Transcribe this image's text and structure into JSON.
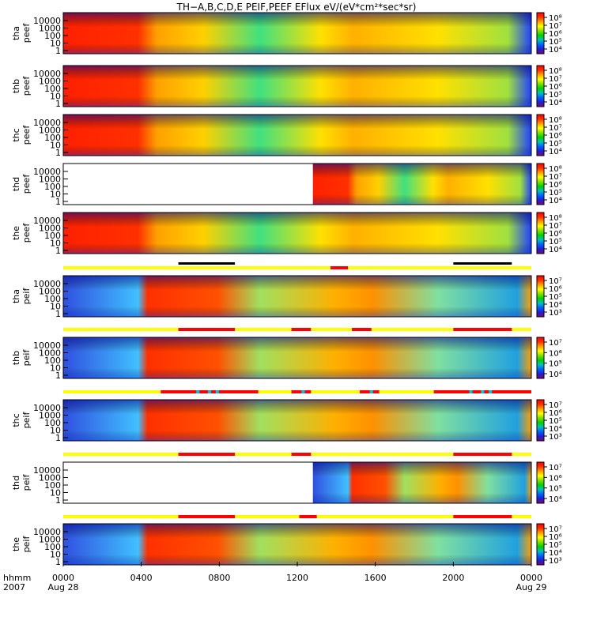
{
  "chart_data": {
    "type": "heatmap",
    "title": "TH−A,B,C,D,E PEIF,PEEF EFlux eV/(eV*cm²*sec*sr)",
    "x_axis": {
      "label_line1": "hhmm",
      "label_line2": "2007",
      "range_hours": [
        0,
        24
      ],
      "ticks": [
        "0000",
        "0400",
        "0800",
        "1200",
        "1600",
        "2000",
        "0000"
      ],
      "date_labels": [
        "Aug 28",
        "Aug 29"
      ]
    },
    "panels": [
      {
        "probe": "tha",
        "product": "peef",
        "yticks": [
          "10000",
          "1000",
          "100",
          "10",
          "1"
        ],
        "cb_ticks": [
          "10⁸",
          "10⁷",
          "10⁶",
          "10⁵",
          "10⁴"
        ],
        "data_start_hour": 0
      },
      {
        "probe": "thb",
        "product": "peef",
        "yticks": [
          "10000",
          "1000",
          "100",
          "10",
          "1"
        ],
        "cb_ticks": [
          "10⁸",
          "10⁷",
          "10⁶",
          "10⁵",
          "10⁴"
        ],
        "data_start_hour": 0
      },
      {
        "probe": "thc",
        "product": "peef",
        "yticks": [
          "10000",
          "1000",
          "100",
          "10",
          "1"
        ],
        "cb_ticks": [
          "10⁸",
          "10⁷",
          "10⁶",
          "10⁵",
          "10⁴"
        ],
        "data_start_hour": 0
      },
      {
        "probe": "thd",
        "product": "peef",
        "yticks": [
          "10000",
          "1000",
          "100",
          "10",
          "1"
        ],
        "cb_ticks": [
          "10⁸",
          "10⁷",
          "10⁶",
          "10⁵",
          "10⁴"
        ],
        "data_start_hour": 12.8
      },
      {
        "probe": "the",
        "product": "peef",
        "yticks": [
          "10000",
          "1000",
          "100",
          "10",
          "1"
        ],
        "cb_ticks": [
          "10⁸",
          "10⁷",
          "10⁶",
          "10⁵",
          "10⁴"
        ],
        "data_start_hour": 0
      },
      {
        "probe": "tha",
        "product": "peif",
        "yticks": [
          "10000",
          "1000",
          "100",
          "10",
          "1"
        ],
        "cb_ticks": [
          "10⁷",
          "10⁶",
          "10⁵",
          "10⁴",
          "10³"
        ],
        "data_start_hour": 0
      },
      {
        "probe": "thb",
        "product": "peif",
        "yticks": [
          "10000",
          "1000",
          "100",
          "10",
          "1"
        ],
        "cb_ticks": [
          "10⁷",
          "10⁶",
          "10⁵",
          "10⁴"
        ],
        "data_start_hour": 0
      },
      {
        "probe": "thc",
        "product": "peif",
        "yticks": [
          "10000",
          "1000",
          "100",
          "10",
          "1"
        ],
        "cb_ticks": [
          "10⁷",
          "10⁶",
          "10⁵",
          "10⁴",
          "10³"
        ],
        "data_start_hour": 0
      },
      {
        "probe": "thd",
        "product": "peif",
        "yticks": [
          "10000",
          "1000",
          "100",
          "10",
          "1"
        ],
        "cb_ticks": [
          "10⁷",
          "10⁶",
          "10⁵",
          "10⁴"
        ],
        "data_start_hour": 12.8
      },
      {
        "probe": "the",
        "product": "peif",
        "yticks": [
          "10000",
          "1000",
          "100",
          "10",
          "1"
        ],
        "cb_ticks": [
          "10⁷",
          "10⁶",
          "10⁵",
          "10⁴",
          "10³"
        ],
        "data_start_hour": 0
      }
    ],
    "mode_bars": [
      {
        "after_panel": 5,
        "red_intervals": [
          [
            13.7,
            14.6
          ]
        ],
        "black_intervals": [
          [
            5.9,
            8.8
          ],
          [
            20.0,
            23.0
          ]
        ]
      },
      {
        "after_panel": 6,
        "red_intervals": [
          [
            5.9,
            8.8
          ],
          [
            11.7,
            12.7
          ],
          [
            14.8,
            15.8
          ],
          [
            20.0,
            23.0
          ]
        ],
        "black_intervals": []
      },
      {
        "after_panel": 7,
        "red_intervals": [
          [
            5.0,
            10.0
          ],
          [
            11.7,
            12.7
          ],
          [
            15.2,
            16.2
          ],
          [
            19.0,
            24.0
          ]
        ],
        "black_intervals": [],
        "cyan_marks": [
          6.9,
          7.5,
          7.9,
          12.3,
          15.8,
          20.9,
          21.5,
          21.9
        ]
      },
      {
        "after_panel": 8,
        "red_intervals": [
          [
            5.9,
            8.8
          ],
          [
            11.7,
            12.7
          ],
          [
            20.0,
            23.0
          ]
        ],
        "black_intervals": []
      },
      {
        "after_panel": 9,
        "red_intervals": [
          [
            5.9,
            8.8
          ],
          [
            12.1,
            13.0
          ],
          [
            20.0,
            23.0
          ]
        ],
        "black_intervals": []
      }
    ],
    "colorscale": [
      "#800080",
      "#2020d0",
      "#0060ff",
      "#00c0c0",
      "#00d000",
      "#80e000",
      "#ffff00",
      "#ffa000",
      "#ff3000",
      "#ff0000"
    ]
  }
}
